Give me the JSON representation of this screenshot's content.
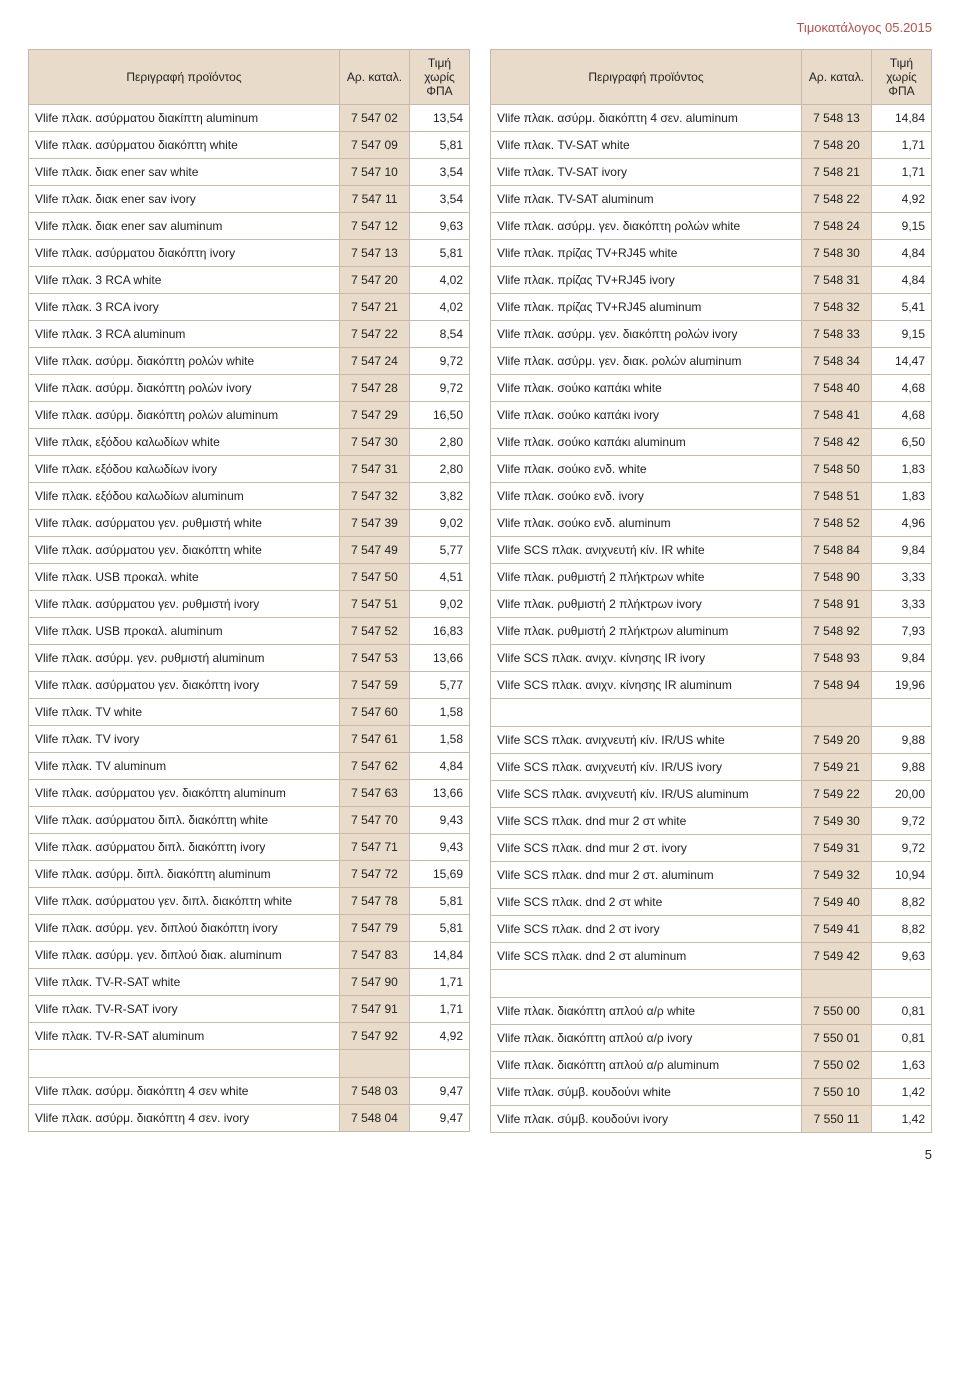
{
  "header": {
    "title": "Τιμοκατάλογος 05.2015"
  },
  "footer": {
    "page_number": "5"
  },
  "table_headers": {
    "desc": "Περιγραφή προϊόντος",
    "code": "Αρ. καταλ.",
    "price": "Τιμή χωρίς ΦΠΑ"
  },
  "left": [
    {
      "desc": "Vlife πλακ. ασύρματου διακίπτη aluminum",
      "code": "7 547 02",
      "price": "13,54"
    },
    {
      "desc": "Vlife πλακ. ασύρματου διακόπτη white",
      "code": "7 547 09",
      "price": "5,81"
    },
    {
      "desc": "Vlife πλακ. διακ ener sav white",
      "code": "7 547 10",
      "price": "3,54"
    },
    {
      "desc": "Vlife πλακ. διακ ener sav ivory",
      "code": "7 547 11",
      "price": "3,54"
    },
    {
      "desc": "Vlife πλακ. διακ ener sav aluminum",
      "code": "7 547 12",
      "price": "9,63"
    },
    {
      "desc": "Vlife πλακ. ασύρματου διακόπτη ivory",
      "code": "7 547 13",
      "price": "5,81"
    },
    {
      "desc": "Vlife πλακ. 3 RCA white",
      "code": "7 547 20",
      "price": "4,02"
    },
    {
      "desc": "Vlife πλακ. 3 RCA ivory",
      "code": "7 547 21",
      "price": "4,02"
    },
    {
      "desc": "Vlife πλακ. 3 RCA aluminum",
      "code": "7 547 22",
      "price": "8,54"
    },
    {
      "desc": "Vlife πλακ. ασύρμ. διακόπτη ρολών white",
      "code": "7 547 24",
      "price": "9,72"
    },
    {
      "desc": "Vlife πλακ. ασύρμ. διακόπτη ρολών ivory",
      "code": "7 547 28",
      "price": "9,72"
    },
    {
      "desc": "Vlife πλακ. ασύρμ. διακόπτη ρολών aluminum",
      "code": "7 547 29",
      "price": "16,50"
    },
    {
      "desc": "Vlife πλακ, εξόδου καλωδίων white",
      "code": "7 547 30",
      "price": "2,80"
    },
    {
      "desc": "Vlife πλακ. εξόδου καλωδίων ivory",
      "code": "7 547 31",
      "price": "2,80"
    },
    {
      "desc": "Vlife πλακ. εξόδου καλωδίων aluminum",
      "code": "7 547 32",
      "price": "3,82"
    },
    {
      "desc": "Vlife πλακ. ασύρματου γεν. ρυθμιστή white",
      "code": "7 547 39",
      "price": "9,02"
    },
    {
      "desc": "Vlife πλακ. ασύρματου γεν. διακόπτη white",
      "code": "7 547 49",
      "price": "5,77"
    },
    {
      "desc": "Vlife πλακ. USB προκαλ. white",
      "code": "7 547 50",
      "price": "4,51"
    },
    {
      "desc": "Vlife πλακ. ασύρματου γεν. ρυθμιστή ivory",
      "code": "7 547 51",
      "price": "9,02"
    },
    {
      "desc": "Vlife πλακ. USB προκαλ. aluminum",
      "code": "7 547 52",
      "price": "16,83"
    },
    {
      "desc": "Vlife πλακ. ασύρμ. γεν. ρυθμιστή aluminum",
      "code": "7 547 53",
      "price": "13,66"
    },
    {
      "desc": "Vlife πλακ. ασύρματου γεν. διακόπτη ivory",
      "code": "7 547 59",
      "price": "5,77"
    },
    {
      "desc": "Vlife πλακ. TV white",
      "code": "7 547 60",
      "price": "1,58"
    },
    {
      "desc": "Vlife πλακ. TV ivory",
      "code": "7 547 61",
      "price": "1,58"
    },
    {
      "desc": "Vlife πλακ. TV aluminum",
      "code": "7 547 62",
      "price": "4,84"
    },
    {
      "desc": "Vlife πλακ. ασύρματου γεν. διακόπτη aluminum",
      "code": "7 547 63",
      "price": "13,66"
    },
    {
      "desc": "Vlife πλακ. ασύρματου διπλ. διακόπτη white",
      "code": "7 547 70",
      "price": "9,43"
    },
    {
      "desc": "Vlife πλακ. ασύρματου διπλ. διακόπτη ivory",
      "code": "7 547 71",
      "price": "9,43"
    },
    {
      "desc": "Vlife πλακ. ασύρμ. διπλ. διακόπτη aluminum",
      "code": "7 547 72",
      "price": "15,69"
    },
    {
      "desc": "Vlife πλακ. ασύρματου γεν. διπλ. διακόπτη white",
      "code": "7 547 78",
      "price": "5,81"
    },
    {
      "desc": "Vlife πλακ. ασύρμ. γεν. διπλού διακόπτη ivory",
      "code": "7 547 79",
      "price": "5,81"
    },
    {
      "desc": "Vlife πλακ. ασύρμ. γεν. διπλού διακ. aluminum",
      "code": "7 547 83",
      "price": "14,84"
    },
    {
      "desc": "Vlife πλακ. TV-R-SAT white",
      "code": "7 547 90",
      "price": "1,71"
    },
    {
      "desc": "Vlife πλακ. TV-R-SAT ivory",
      "code": "7 547 91",
      "price": "1,71"
    },
    {
      "desc": "Vlife πλακ. TV-R-SAT aluminum",
      "code": "7 547 92",
      "price": "4,92"
    },
    {
      "empty": true
    },
    {
      "desc": "Vlife πλακ. ασύρμ. διακόπτη 4 σεν white",
      "code": "7 548 03",
      "price": "9,47"
    },
    {
      "desc": "Vlife πλακ. ασύρμ. διακόπτη 4 σεν. ivory",
      "code": "7 548 04",
      "price": "9,47"
    }
  ],
  "right": [
    {
      "desc": "Vlife πλακ. ασύρμ. διακόπτη 4 σεν. aluminum",
      "code": "7 548 13",
      "price": "14,84"
    },
    {
      "desc": "Vlife πλακ. TV-SAT white",
      "code": "7 548 20",
      "price": "1,71"
    },
    {
      "desc": "Vlife πλακ. TV-SAT ivory",
      "code": "7 548 21",
      "price": "1,71"
    },
    {
      "desc": "Vlife πλακ. TV-SAT aluminum",
      "code": "7 548 22",
      "price": "4,92"
    },
    {
      "desc": "Vlife πλακ. ασύρμ. γεν. διακόπτη ρολών white",
      "code": "7 548 24",
      "price": "9,15"
    },
    {
      "desc": "Vlife πλακ. πρίζας TV+RJ45 white",
      "code": "7 548 30",
      "price": "4,84"
    },
    {
      "desc": "Vlife πλακ. πρίζας TV+RJ45 ivory",
      "code": "7 548 31",
      "price": "4,84"
    },
    {
      "desc": "Vlife πλακ. πρίζας TV+RJ45 aluminum",
      "code": "7 548 32",
      "price": "5,41"
    },
    {
      "desc": "Vlife πλακ. ασύρμ. γεν. διακόπτη ρολών ivory",
      "code": "7 548 33",
      "price": "9,15"
    },
    {
      "desc": "Vlife πλακ. ασύρμ. γεν. διακ. ρολών aluminum",
      "code": "7 548 34",
      "price": "14,47"
    },
    {
      "desc": "Vlife πλακ. σούκο καπάκι white",
      "code": "7 548 40",
      "price": "4,68"
    },
    {
      "desc": "Vlife πλακ. σούκο καπάκι ivory",
      "code": "7 548 41",
      "price": "4,68"
    },
    {
      "desc": "Vlife πλακ. σούκο καπάκι aluminum",
      "code": "7 548 42",
      "price": "6,50"
    },
    {
      "desc": "Vlife πλακ. σούκο  ενδ. white",
      "code": "7 548 50",
      "price": "1,83"
    },
    {
      "desc": "Vlife πλακ. σούκο ενδ. ivory",
      "code": "7 548 51",
      "price": "1,83"
    },
    {
      "desc": "Vlife πλακ. σούκο ενδ. aluminum",
      "code": "7 548 52",
      "price": "4,96"
    },
    {
      "desc": "Vlife SCS πλακ. ανιχνευτή κίν. IR white",
      "code": "7 548 84",
      "price": "9,84"
    },
    {
      "desc": "Vlife πλακ. ρυθμιστή 2 πλήκτρων white",
      "code": "7 548 90",
      "price": "3,33"
    },
    {
      "desc": "Vlife πλακ. ρυθμιστή 2 πλήκτρων ivory",
      "code": "7 548 91",
      "price": "3,33"
    },
    {
      "desc": "Vlife πλακ. ρυθμιστή 2 πλήκτρων aluminum",
      "code": "7 548 92",
      "price": "7,93"
    },
    {
      "desc": "Vlife SCS πλακ. ανιχν. κίνησης IR ivory",
      "code": "7 548 93",
      "price": "9,84"
    },
    {
      "desc": "Vlife SCS πλακ. ανιχν. κίνησης IR aluminum",
      "code": "7 548 94",
      "price": "19,96"
    },
    {
      "empty": true
    },
    {
      "desc": "Vlife SCS πλακ. ανιχνευτή κίν. IR/US white",
      "code": "7 549 20",
      "price": "9,88"
    },
    {
      "desc": "Vlife SCS πλακ. ανιχνευτή κίν. IR/US ivory",
      "code": "7 549 21",
      "price": "9,88"
    },
    {
      "desc": "Vlife SCS πλακ. ανιχνευτή κίν. IR/US aluminum",
      "code": "7 549 22",
      "price": "20,00"
    },
    {
      "desc": "Vlife SCS πλακ. dnd mur 2 στ white",
      "code": "7 549 30",
      "price": "9,72"
    },
    {
      "desc": "Vlife SCS πλακ. dnd mur 2 στ. ivory",
      "code": "7 549 31",
      "price": "9,72"
    },
    {
      "desc": "Vlife SCS πλακ. dnd mur 2 στ. aluminum",
      "code": "7 549 32",
      "price": "10,94"
    },
    {
      "desc": "Vlife SCS πλακ. dnd 2 στ white",
      "code": "7 549 40",
      "price": "8,82"
    },
    {
      "desc": "Vlife SCS πλακ. dnd 2 στ ivory",
      "code": "7 549 41",
      "price": "8,82"
    },
    {
      "desc": "Vlife SCS πλακ. dnd 2 στ aluminum",
      "code": "7 549 42",
      "price": "9,63"
    },
    {
      "empty": true
    },
    {
      "desc": "Vlife πλακ. διακόπτη απλού α/ρ white",
      "code": "7 550 00",
      "price": "0,81"
    },
    {
      "desc": "Vlife πλακ. διακόπτη απλού α/ρ ivory",
      "code": "7 550 01",
      "price": "0,81"
    },
    {
      "desc": "Vlife πλακ. διακόπτη απλού α/ρ aluminum",
      "code": "7 550 02",
      "price": "1,63"
    },
    {
      "desc": "Vlife πλακ. σύμβ. κουδούνι white",
      "code": "7 550 10",
      "price": "1,42"
    },
    {
      "desc": "Vlife πλακ. σύμβ. κουδούνι ivory",
      "code": "7 550 11",
      "price": "1,42"
    }
  ]
}
